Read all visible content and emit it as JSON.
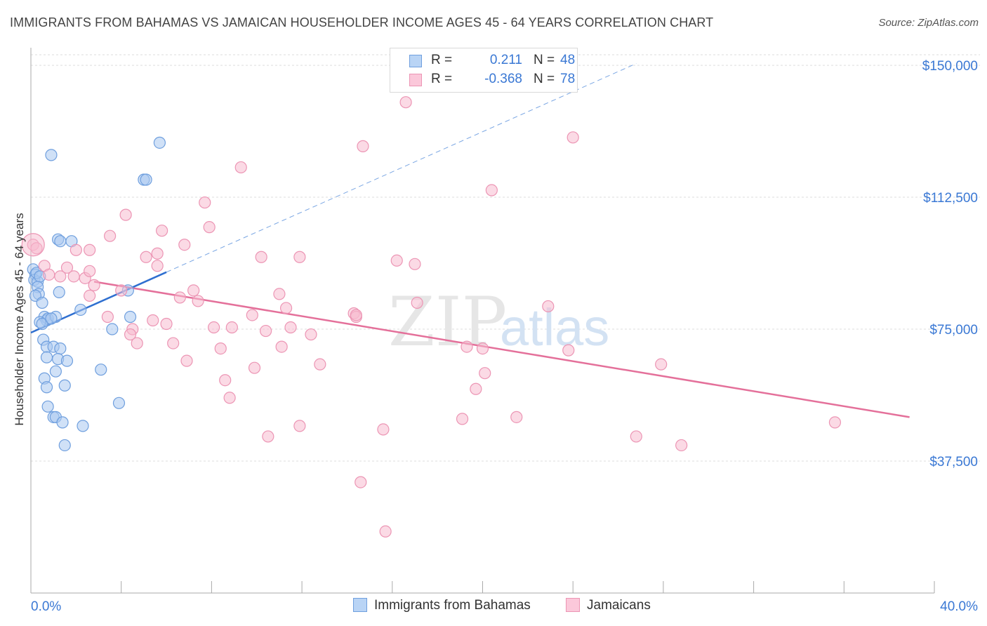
{
  "title": "IMMIGRANTS FROM BAHAMAS VS JAMAICAN HOUSEHOLDER INCOME AGES 45 - 64 YEARS CORRELATION CHART",
  "source": "Source: ZipAtlas.com",
  "watermark": {
    "zip": "ZIP",
    "atlas": "atlas"
  },
  "colors": {
    "blue_fill": "#a9c8f0",
    "blue_stroke": "#6f9fde",
    "blue_line": "#2f6fd0",
    "pink_fill": "#f7bcd0",
    "pink_stroke": "#ec95b4",
    "pink_line": "#e4709a",
    "axis_text": "#3a78d4",
    "grid": "#dddddd"
  },
  "legend": {
    "rows": [
      {
        "r_label": "R =",
        "r_value": "0.211",
        "n_label": "N =",
        "n_value": "48"
      },
      {
        "r_label": "R =",
        "r_value": "-0.368",
        "n_label": "N =",
        "n_value": "78"
      }
    ]
  },
  "bottom_legend": {
    "blue": "Immigrants from Bahamas",
    "pink": "Jamaicans"
  },
  "chart_data": {
    "type": "scatter",
    "xlabel": "",
    "ylabel": "Householder Income Ages 45 - 64 years",
    "xlim": [
      0,
      40
    ],
    "ylim": [
      0,
      155000
    ],
    "x_tick_labels": [
      {
        "value": 0,
        "label": "0.0%"
      },
      {
        "value": 40,
        "label": "40.0%"
      }
    ],
    "y_tick_labels": [
      {
        "value": 37500,
        "label": "$37,500"
      },
      {
        "value": 75000,
        "label": "$75,000"
      },
      {
        "value": 112500,
        "label": "$112,500"
      },
      {
        "value": 150000,
        "label": "$150,000"
      }
    ],
    "x_minor_ticks": [
      4,
      8,
      12,
      16,
      20,
      24,
      28,
      32,
      36,
      40
    ],
    "grid": true,
    "legend_position": "top-center",
    "series": [
      {
        "name": "Immigrants from Bahamas",
        "color": "blue",
        "points": [
          [
            0.1,
            92000
          ],
          [
            0.2,
            90500
          ],
          [
            0.15,
            89000
          ],
          [
            0.3,
            88500
          ],
          [
            0.25,
            91000
          ],
          [
            0.4,
            90000
          ],
          [
            0.3,
            87000
          ],
          [
            0.35,
            85000
          ],
          [
            0.2,
            84500
          ],
          [
            0.5,
            82500
          ],
          [
            0.6,
            78500
          ],
          [
            0.7,
            77500
          ],
          [
            0.75,
            78000
          ],
          [
            0.4,
            77000
          ],
          [
            0.5,
            76500
          ],
          [
            0.55,
            72000
          ],
          [
            0.7,
            70000
          ],
          [
            1.0,
            70000
          ],
          [
            1.3,
            69500
          ],
          [
            0.7,
            67000
          ],
          [
            1.2,
            66500
          ],
          [
            1.6,
            66000
          ],
          [
            1.1,
            63000
          ],
          [
            0.6,
            61000
          ],
          [
            0.7,
            58500
          ],
          [
            1.5,
            59000
          ],
          [
            0.75,
            53000
          ],
          [
            1.0,
            50000
          ],
          [
            1.1,
            50000
          ],
          [
            1.4,
            48500
          ],
          [
            2.3,
            47500
          ],
          [
            1.5,
            42000
          ],
          [
            0.9,
            124500
          ],
          [
            5.7,
            128000
          ],
          [
            5.0,
            117500
          ],
          [
            5.1,
            117500
          ],
          [
            1.8,
            100000
          ],
          [
            1.2,
            100500
          ],
          [
            1.3,
            100000
          ],
          [
            1.25,
            85500
          ],
          [
            2.2,
            80500
          ],
          [
            3.1,
            63500
          ],
          [
            3.6,
            75000
          ],
          [
            4.4,
            78500
          ],
          [
            4.3,
            86000
          ],
          [
            3.9,
            54000
          ],
          [
            1.1,
            78500
          ],
          [
            0.9,
            78000
          ]
        ]
      },
      {
        "name": "Jamaicans",
        "color": "pink",
        "points": [
          [
            0.1,
            99000
          ],
          [
            0.25,
            98000
          ],
          [
            0.6,
            93000
          ],
          [
            0.8,
            90500
          ],
          [
            1.6,
            92500
          ],
          [
            1.3,
            90000
          ],
          [
            1.9,
            90000
          ],
          [
            2.0,
            97500
          ],
          [
            2.6,
            97500
          ],
          [
            2.4,
            89500
          ],
          [
            2.6,
            91500
          ],
          [
            2.8,
            87500
          ],
          [
            2.6,
            84500
          ],
          [
            3.5,
            101500
          ],
          [
            4.2,
            107500
          ],
          [
            4.0,
            86000
          ],
          [
            3.4,
            78500
          ],
          [
            4.5,
            75000
          ],
          [
            4.4,
            73500
          ],
          [
            4.7,
            71000
          ],
          [
            5.1,
            95500
          ],
          [
            5.6,
            96500
          ],
          [
            5.4,
            77500
          ],
          [
            5.6,
            93000
          ],
          [
            5.8,
            103000
          ],
          [
            6.0,
            76500
          ],
          [
            6.3,
            71000
          ],
          [
            6.6,
            84000
          ],
          [
            6.8,
            99000
          ],
          [
            6.9,
            66000
          ],
          [
            7.2,
            86000
          ],
          [
            7.4,
            83000
          ],
          [
            7.7,
            111000
          ],
          [
            7.9,
            104000
          ],
          [
            8.1,
            75500
          ],
          [
            8.4,
            69500
          ],
          [
            8.6,
            60500
          ],
          [
            8.8,
            55500
          ],
          [
            8.9,
            75500
          ],
          [
            9.3,
            121000
          ],
          [
            9.8,
            79000
          ],
          [
            9.9,
            64000
          ],
          [
            10.2,
            95500
          ],
          [
            10.4,
            74500
          ],
          [
            10.5,
            44500
          ],
          [
            11.0,
            85000
          ],
          [
            11.1,
            70000
          ],
          [
            11.3,
            81000
          ],
          [
            11.5,
            75500
          ],
          [
            11.9,
            47500
          ],
          [
            11.9,
            95500
          ],
          [
            12.4,
            73500
          ],
          [
            12.8,
            65000
          ],
          [
            14.3,
            79500
          ],
          [
            14.4,
            78500
          ],
          [
            14.6,
            31500
          ],
          [
            14.7,
            127000
          ],
          [
            15.6,
            46500
          ],
          [
            15.7,
            17500
          ],
          [
            16.2,
            94500
          ],
          [
            16.6,
            139500
          ],
          [
            17.1,
            82500
          ],
          [
            17.0,
            93500
          ],
          [
            19.1,
            49500
          ],
          [
            19.3,
            70000
          ],
          [
            19.7,
            58000
          ],
          [
            20.0,
            69500
          ],
          [
            20.1,
            62500
          ],
          [
            20.4,
            114500
          ],
          [
            21.5,
            50000
          ],
          [
            22.9,
            81500
          ],
          [
            23.8,
            69000
          ],
          [
            24.0,
            129500
          ],
          [
            26.8,
            44500
          ],
          [
            27.9,
            65000
          ],
          [
            28.8,
            42000
          ],
          [
            35.6,
            48500
          ],
          [
            14.4,
            79000
          ]
        ]
      }
    ],
    "trend_lines": [
      {
        "series": "Immigrants from Bahamas",
        "style": "solid",
        "from": [
          0,
          74000
        ],
        "to": [
          6.0,
          91200
        ]
      },
      {
        "series": "Immigrants from Bahamas",
        "style": "dashed",
        "from": [
          6.0,
          91200
        ],
        "to": [
          26.8,
          150500
        ]
      },
      {
        "series": "Jamaicans",
        "style": "solid",
        "from": [
          2.8,
          88500
        ],
        "to": [
          38.9,
          50000
        ]
      }
    ]
  }
}
